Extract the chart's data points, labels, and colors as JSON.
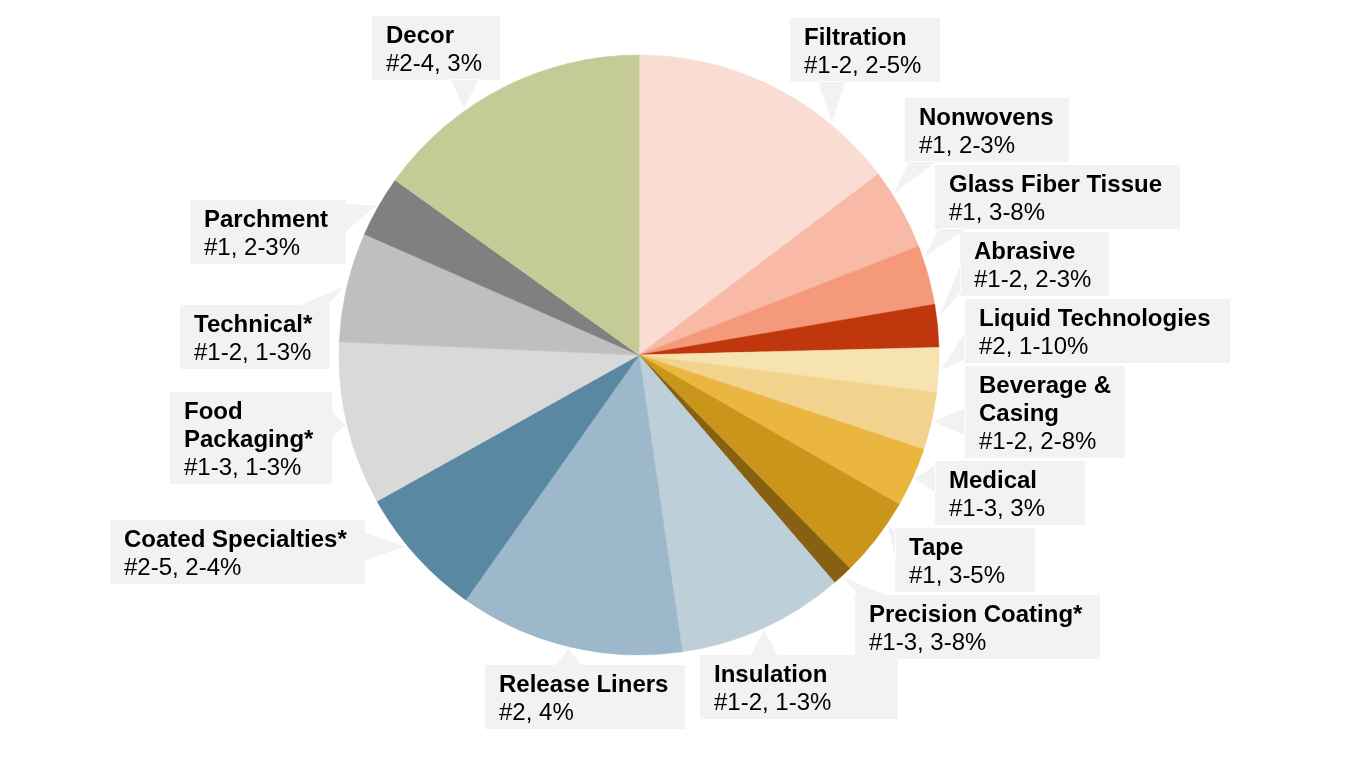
{
  "chart_data": {
    "type": "pie",
    "categories": [
      "Filtration\n#1-2, 2-5%",
      "Nonwovens\n#1, 2-3%",
      "Glass Fiber Tissue\n#1, 3-8%",
      "Abrasive\n#1-2, 2-3%",
      "Liquid Technologies\n#2, 1-10%",
      "Beverage &\nCasing\n#1-2, 2-8%",
      "Medical\n#1-3, 3%",
      "Tape\n#1, 3-5%",
      "Precision Coating*\n#1-3, 3-8%",
      "Insulation\n#1-2, 1-3%",
      "Release Liners\n#2, 4%",
      "Coated Specialties*\n#2-5, 2-4%",
      "Food\nPackaging*\n#1-3, 1-3%",
      "Technical*\n#1-2, 1-3%",
      "Parchment\n#1, 2-3%",
      "Decor\n#2-4, 3%"
    ],
    "values": [
      14.7,
      4.4,
      3.2,
      2.3,
      2.4,
      3.1,
      3.2,
      4.3,
      1.1,
      9.0,
      12.1,
      7.1,
      8.8,
      5.9,
      3.3,
      15.1
    ],
    "colors": [
      "#fadcd2",
      "#f8baa6",
      "#f5997b",
      "#c0370d",
      "#f7e3b0",
      "#f2d38d",
      "#ebb63f",
      "#c9951a",
      "#876111",
      "#bdd0da",
      "#9cb8ca",
      "#5988a3",
      "#d9d9d9",
      "#bfbfbf",
      "#808080",
      "#c4cb97"
    ]
  }
}
